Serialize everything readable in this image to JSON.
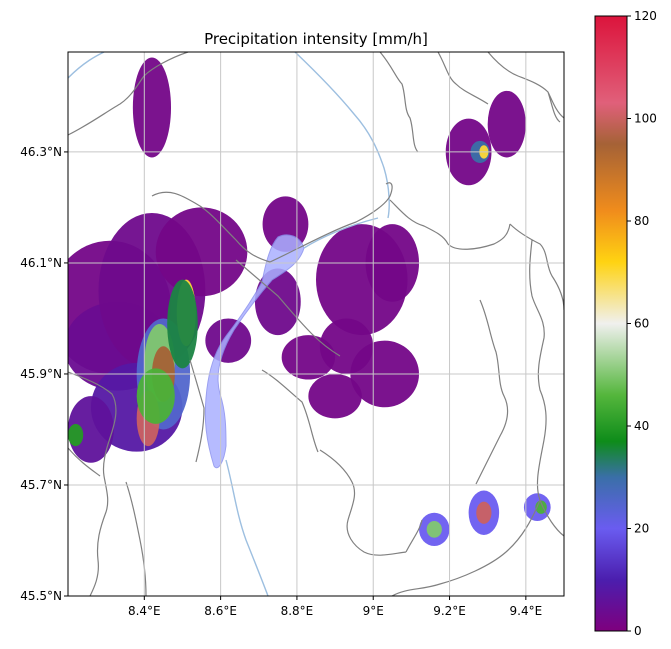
{
  "chart_data": {
    "type": "heatmap",
    "title": "Precipitation intensity [mm/h]",
    "x_ticks": [
      "8.4°E",
      "8.6°E",
      "8.8°E",
      "9°E",
      "9.2°E",
      "9.4°E"
    ],
    "x_tick_values": [
      8.4,
      8.6,
      8.8,
      9.0,
      9.2,
      9.4
    ],
    "y_ticks": [
      "46.3°N",
      "46.1°N",
      "45.9°N",
      "45.7°N",
      "45.5°N"
    ],
    "y_tick_values": [
      46.3,
      46.1,
      45.9,
      45.7,
      45.5
    ],
    "xlim": [
      8.2,
      9.5
    ],
    "ylim": [
      45.5,
      46.48
    ],
    "grid": true,
    "colorbar": {
      "ticks": [
        "0",
        "20",
        "40",
        "60",
        "80",
        "100",
        "120"
      ],
      "tick_values": [
        0,
        20,
        40,
        60,
        80,
        100,
        120
      ],
      "range": [
        0,
        120
      ],
      "stops": [
        {
          "v": 0,
          "c": "#7e007e"
        },
        {
          "v": 10,
          "c": "#4b1eae"
        },
        {
          "v": 20,
          "c": "#6a5cf0"
        },
        {
          "v": 30,
          "c": "#3a6fa8"
        },
        {
          "v": 37,
          "c": "#0e8c1a"
        },
        {
          "v": 46,
          "c": "#54b63c"
        },
        {
          "v": 60,
          "c": "#f0f0ee"
        },
        {
          "v": 72,
          "c": "#ffd312"
        },
        {
          "v": 82,
          "c": "#f08c1c"
        },
        {
          "v": 95,
          "c": "#a56236"
        },
        {
          "v": 103,
          "c": "#e0607a"
        },
        {
          "v": 120,
          "c": "#dc143c"
        }
      ]
    },
    "precip_cells": [
      {
        "lon": 8.31,
        "lat": 46.02,
        "rlon": 0.16,
        "rlat": 0.12,
        "v": 2
      },
      {
        "lon": 8.33,
        "lat": 45.95,
        "rlon": 0.14,
        "rlat": 0.08,
        "v": 4
      },
      {
        "lon": 8.42,
        "lat": 46.05,
        "rlon": 0.14,
        "rlat": 0.14,
        "v": 3
      },
      {
        "lon": 8.55,
        "lat": 46.12,
        "rlon": 0.12,
        "rlat": 0.08,
        "v": 2
      },
      {
        "lon": 8.38,
        "lat": 45.84,
        "rlon": 0.12,
        "rlat": 0.08,
        "v": 8
      },
      {
        "lon": 8.26,
        "lat": 45.8,
        "rlon": 0.06,
        "rlat": 0.06,
        "v": 6
      },
      {
        "lon": 8.45,
        "lat": 45.9,
        "rlon": 0.07,
        "rlat": 0.1,
        "v": 25
      },
      {
        "lon": 8.44,
        "lat": 45.92,
        "rlon": 0.04,
        "rlat": 0.07,
        "v": 50
      },
      {
        "lon": 8.45,
        "lat": 45.9,
        "rlon": 0.03,
        "rlat": 0.05,
        "v": 95
      },
      {
        "lon": 8.51,
        "lat": 46.01,
        "rlon": 0.025,
        "rlat": 0.06,
        "v": 70
      },
      {
        "lon": 8.5,
        "lat": 45.99,
        "rlon": 0.04,
        "rlat": 0.08,
        "v": 35
      },
      {
        "lon": 8.41,
        "lat": 45.82,
        "rlon": 0.03,
        "rlat": 0.05,
        "v": 100
      },
      {
        "lon": 8.43,
        "lat": 45.86,
        "rlon": 0.05,
        "rlat": 0.05,
        "v": 45
      },
      {
        "lon": 8.22,
        "lat": 45.79,
        "rlon": 0.02,
        "rlat": 0.02,
        "v": 40
      },
      {
        "lon": 8.42,
        "lat": 46.38,
        "rlon": 0.05,
        "rlat": 0.09,
        "v": 2
      },
      {
        "lon": 8.77,
        "lat": 46.17,
        "rlon": 0.06,
        "rlat": 0.05,
        "v": 2
      },
      {
        "lon": 8.75,
        "lat": 46.03,
        "rlon": 0.06,
        "rlat": 0.06,
        "v": 3
      },
      {
        "lon": 8.62,
        "lat": 45.96,
        "rlon": 0.06,
        "rlat": 0.04,
        "v": 3
      },
      {
        "lon": 8.97,
        "lat": 46.07,
        "rlon": 0.12,
        "rlat": 0.1,
        "v": 2
      },
      {
        "lon": 9.05,
        "lat": 46.1,
        "rlon": 0.07,
        "rlat": 0.07,
        "v": 2
      },
      {
        "lon": 8.93,
        "lat": 45.95,
        "rlon": 0.07,
        "rlat": 0.05,
        "v": 2
      },
      {
        "lon": 8.83,
        "lat": 45.93,
        "rlon": 0.07,
        "rlat": 0.04,
        "v": 2
      },
      {
        "lon": 9.03,
        "lat": 45.9,
        "rlon": 0.09,
        "rlat": 0.06,
        "v": 2
      },
      {
        "lon": 8.9,
        "lat": 45.86,
        "rlon": 0.07,
        "rlat": 0.04,
        "v": 2
      },
      {
        "lon": 9.25,
        "lat": 46.3,
        "rlon": 0.06,
        "rlat": 0.06,
        "v": 2
      },
      {
        "lon": 9.35,
        "lat": 46.35,
        "rlon": 0.05,
        "rlat": 0.06,
        "v": 2
      },
      {
        "lon": 9.28,
        "lat": 46.3,
        "rlon": 0.025,
        "rlat": 0.02,
        "v": 30
      },
      {
        "lon": 9.29,
        "lat": 46.3,
        "rlon": 0.012,
        "rlat": 0.012,
        "v": 70
      },
      {
        "lon": 9.16,
        "lat": 45.62,
        "rlon": 0.04,
        "rlat": 0.03,
        "v": 20
      },
      {
        "lon": 9.16,
        "lat": 45.62,
        "rlon": 0.02,
        "rlat": 0.015,
        "v": 50
      },
      {
        "lon": 9.29,
        "lat": 45.65,
        "rlon": 0.04,
        "rlat": 0.04,
        "v": 20
      },
      {
        "lon": 9.29,
        "lat": 45.65,
        "rlon": 0.02,
        "rlat": 0.02,
        "v": 100
      },
      {
        "lon": 9.43,
        "lat": 45.66,
        "rlon": 0.035,
        "rlat": 0.025,
        "v": 20
      },
      {
        "lon": 9.44,
        "lat": 45.66,
        "rlon": 0.015,
        "rlat": 0.012,
        "v": 45
      }
    ]
  },
  "map_colors": {
    "borders": "#808080",
    "rivers": "#9dbfe0",
    "lakes": "#aab0ff",
    "grid": "#c8c8c8"
  }
}
